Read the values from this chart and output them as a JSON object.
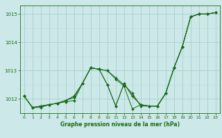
{
  "title": "Graphe pression niveau de la mer (hPa)",
  "bg_color": "#cce8e8",
  "grid_color_major": "#aacece",
  "grid_color_minor": "#bbdddd",
  "line_color": "#1a6b1a",
  "x_min": -0.5,
  "x_max": 23.5,
  "y_min": 1011.5,
  "y_max": 1015.3,
  "y_ticks": [
    1012,
    1013,
    1014,
    1015
  ],
  "x_ticks": [
    0,
    1,
    2,
    3,
    4,
    5,
    6,
    7,
    8,
    9,
    10,
    11,
    12,
    13,
    14,
    15,
    16,
    17,
    18,
    19,
    20,
    21,
    22,
    23
  ],
  "series": [
    [
      1012.1,
      1011.7,
      1011.7,
      1011.8,
      1011.85,
      1011.9,
      1011.95,
      1012.55,
      1013.1,
      1013.05,
      1013.0,
      1012.75,
      1012.5,
      1012.2,
      1011.75,
      1011.75,
      1011.75,
      1012.2,
      1013.1,
      1013.85,
      1014.9,
      1015.0,
      1015.0,
      1015.05
    ],
    [
      1012.1,
      1011.7,
      1011.75,
      1011.8,
      1011.85,
      1011.95,
      1012.05,
      1012.55,
      1013.1,
      1013.05,
      1013.0,
      1012.7,
      1012.45,
      1011.65,
      1011.8,
      1011.75,
      1011.75,
      1012.2,
      1013.1,
      1013.85,
      1014.9,
      1015.0,
      1015.0,
      1015.05
    ],
    [
      1012.1,
      1011.7,
      1011.75,
      1011.8,
      1011.85,
      1011.95,
      1012.1,
      1012.55,
      1013.1,
      1013.05,
      1012.5,
      1011.75,
      1012.55,
      1012.1,
      1011.8,
      1011.75,
      1011.75,
      1012.2,
      1013.1,
      1013.85,
      1014.9,
      1015.0,
      1015.0,
      1015.05
    ],
    [
      1012.1,
      1011.7,
      1011.75,
      1011.8,
      1011.85,
      1011.95,
      1012.1,
      1012.55,
      1013.1,
      1013.05,
      1012.5,
      1011.75,
      1012.55,
      1012.1,
      1011.8,
      1011.75,
      1011.75,
      1012.2,
      1013.1,
      1013.85,
      1014.9,
      1015.0,
      1015.0,
      1015.05
    ]
  ]
}
